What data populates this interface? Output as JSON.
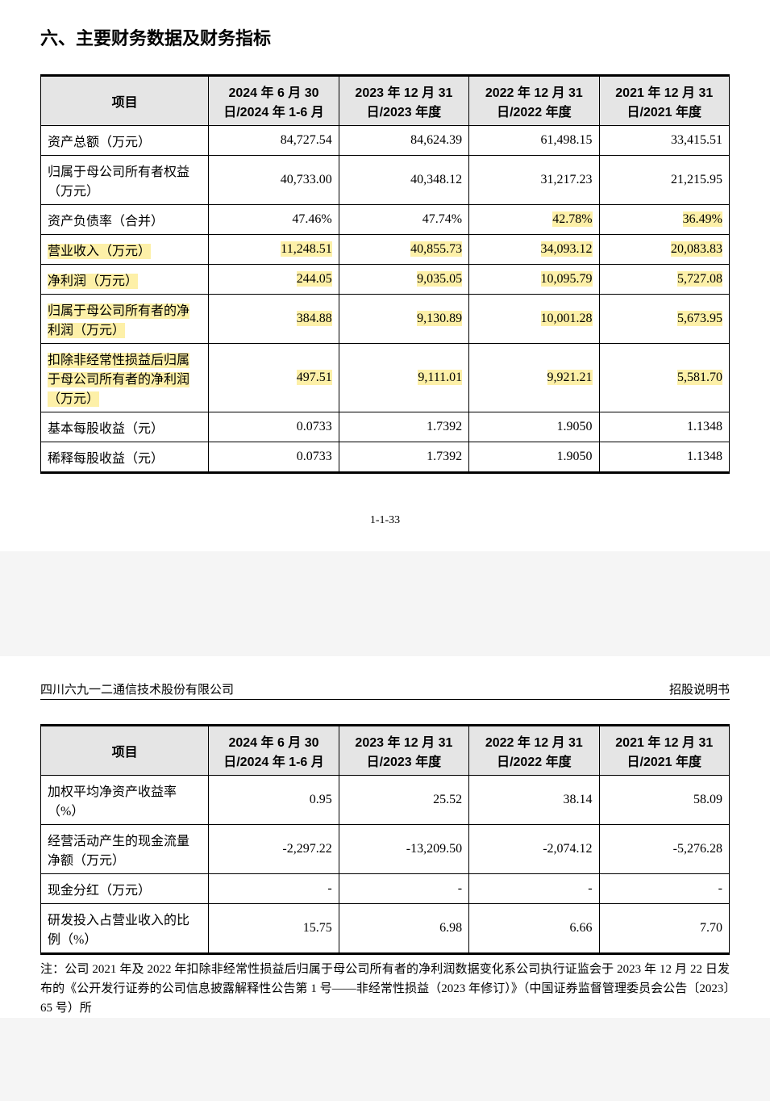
{
  "section_title": "六、主要财务数据及财务指标",
  "page_number": "1-1-33",
  "company_name": "四川六九一二通信技术股份有限公司",
  "doc_type": "招股说明书",
  "highlight_color": "#fdf0a8",
  "header_bg": "#e5e5e5",
  "table1": {
    "columns": [
      "项目",
      "2024 年 6 月 30 日/2024 年 1-6 月",
      "2023 年 12 月 31 日/2023 年度",
      "2022 年 12 月 31 日/2022 年度",
      "2021 年 12 月 31 日/2021 年度"
    ],
    "rows": [
      {
        "label": "资产总额（万元）",
        "v": [
          "84,727.54",
          "84,624.39",
          "61,498.15",
          "33,415.51"
        ],
        "hl_label": false,
        "hl_vals": [
          false,
          false,
          false,
          false
        ]
      },
      {
        "label": "归属于母公司所有者权益（万元）",
        "v": [
          "40,733.00",
          "40,348.12",
          "31,217.23",
          "21,215.95"
        ],
        "hl_label": false,
        "hl_vals": [
          false,
          false,
          false,
          false
        ]
      },
      {
        "label": "资产负债率（合并）",
        "v": [
          "47.46%",
          "47.74%",
          "42.78%",
          "36.49%"
        ],
        "hl_label": false,
        "hl_vals": [
          false,
          false,
          true,
          true
        ]
      },
      {
        "label": "营业收入（万元）",
        "v": [
          "11,248.51",
          "40,855.73",
          "34,093.12",
          "20,083.83"
        ],
        "hl_label": true,
        "hl_vals": [
          true,
          true,
          true,
          true
        ]
      },
      {
        "label": "净利润（万元）",
        "v": [
          "244.05",
          "9,035.05",
          "10,095.79",
          "5,727.08"
        ],
        "hl_label": true,
        "hl_vals": [
          true,
          true,
          true,
          true
        ]
      },
      {
        "label": "归属于母公司所有者的净利润（万元）",
        "v": [
          "384.88",
          "9,130.89",
          "10,001.28",
          "5,673.95"
        ],
        "hl_label": true,
        "hl_vals": [
          true,
          true,
          true,
          true
        ]
      },
      {
        "label": "扣除非经常性损益后归属于母公司所有者的净利润（万元）",
        "v": [
          "497.51",
          "9,111.01",
          "9,921.21",
          "5,581.70"
        ],
        "hl_label": true,
        "hl_vals": [
          true,
          true,
          true,
          true
        ]
      },
      {
        "label": "基本每股收益（元）",
        "v": [
          "0.0733",
          "1.7392",
          "1.9050",
          "1.1348"
        ],
        "hl_label": false,
        "hl_vals": [
          false,
          false,
          false,
          false
        ]
      },
      {
        "label": "稀释每股收益（元）",
        "v": [
          "0.0733",
          "1.7392",
          "1.9050",
          "1.1348"
        ],
        "hl_label": false,
        "hl_vals": [
          false,
          false,
          false,
          false
        ]
      }
    ]
  },
  "table2": {
    "columns": [
      "项目",
      "2024 年 6 月 30 日/2024 年 1-6 月",
      "2023 年 12 月 31 日/2023 年度",
      "2022 年 12 月 31 日/2022 年度",
      "2021 年 12 月 31 日/2021 年度"
    ],
    "rows": [
      {
        "label": "加权平均净资产收益率（%）",
        "v": [
          "0.95",
          "25.52",
          "38.14",
          "58.09"
        ]
      },
      {
        "label": "经营活动产生的现金流量净额（万元）",
        "v": [
          "-2,297.22",
          "-13,209.50",
          "-2,074.12",
          "-5,276.28"
        ]
      },
      {
        "label": "现金分红（万元）",
        "v": [
          "-",
          "-",
          "-",
          "-"
        ]
      },
      {
        "label": "研发投入占营业收入的比例（%）",
        "v": [
          "15.75",
          "6.98",
          "6.66",
          "7.70"
        ]
      }
    ]
  },
  "footnote": "注：公司 2021 年及 2022 年扣除非经常性损益后归属于母公司所有者的净利润数据变化系公司执行证监会于 2023 年 12 月 22 日发布的《公开发行证券的公司信息披露解释性公告第 1 号——非经常性损益（2023 年修订）》（中国证券监督管理委员会公告〔2023〕65 号）所"
}
